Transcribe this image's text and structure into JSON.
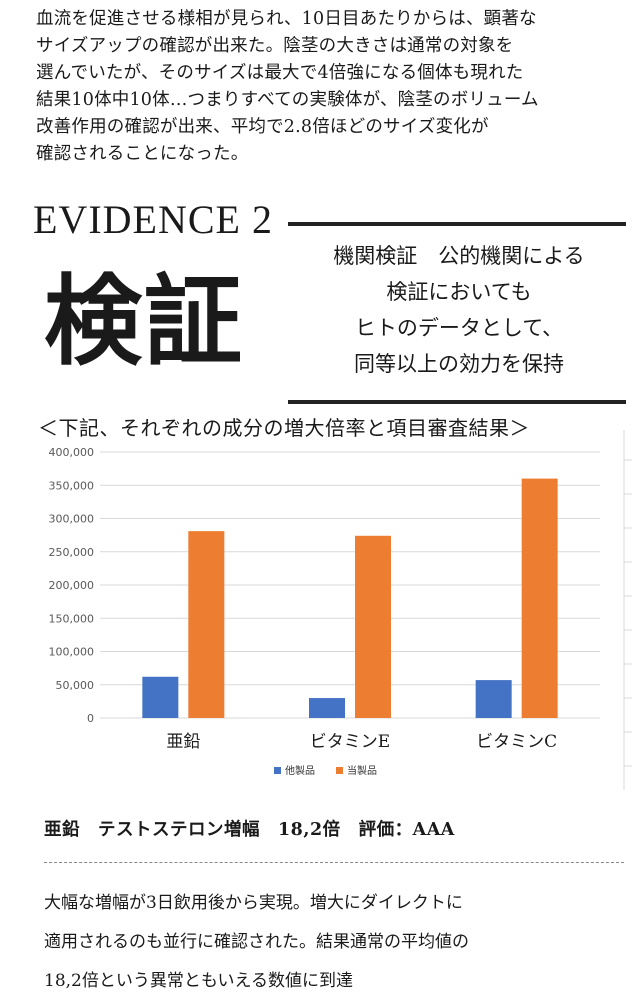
{
  "intro": {
    "lines": [
      "血流を促進させる様相が見られ、10日目あたりからは、顕著な",
      "サイズアップの確認が出来た。陰茎の大きさは通常の対象を",
      "選んでいたが、そのサイズは最大で4倍強になる個体も現れた",
      "結果10体中10体…つまりすべての実験体が、陰茎のボリューム",
      "改善作用の確認が出来、平均で2.8倍ほどのサイズ変化が",
      "確認されることになった。"
    ]
  },
  "evidence": {
    "label": "EVIDENCE 2",
    "kanji": "検証",
    "claim_lines": [
      "機関検証　公的機関による",
      "検証においても",
      "ヒトのデータとして、",
      "同等以上の効力を保持"
    ]
  },
  "chart_caption": "＜下記、それぞれの成分の増大倍率と項目審査結果＞",
  "chart_data": {
    "type": "bar",
    "title": "",
    "xlabel": "",
    "ylabel": "",
    "categories": [
      "亜鉛",
      "ビタミンE",
      "ビタミンC"
    ],
    "series": [
      {
        "name": "他製品",
        "color": "#4472c4",
        "values": [
          62000,
          30000,
          57000
        ]
      },
      {
        "name": "当製品",
        "color": "#ed7d31",
        "values": [
          281000,
          274000,
          360000
        ]
      }
    ],
    "ylim": [
      0,
      400000
    ],
    "yticks": [
      "0",
      "50,000",
      "100,000",
      "150,000",
      "200,000",
      "250,000",
      "300,000",
      "350,000",
      "400,000"
    ],
    "ytick_values": [
      0,
      50000,
      100000,
      150000,
      200000,
      250000,
      300000,
      350000,
      400000
    ],
    "grid": true,
    "legend_position": "bottom-center"
  },
  "summary": "亜鉛　テストステロン増幅　18,2倍　評価：AAA",
  "detail_lines": [
    "大幅な増幅が3日飲用後から実現。増大にダイレクトに",
    "適用されるのも並行に確認された。結果通常の平均値の",
    "18,2倍という異常ともいえる数値に到達"
  ]
}
